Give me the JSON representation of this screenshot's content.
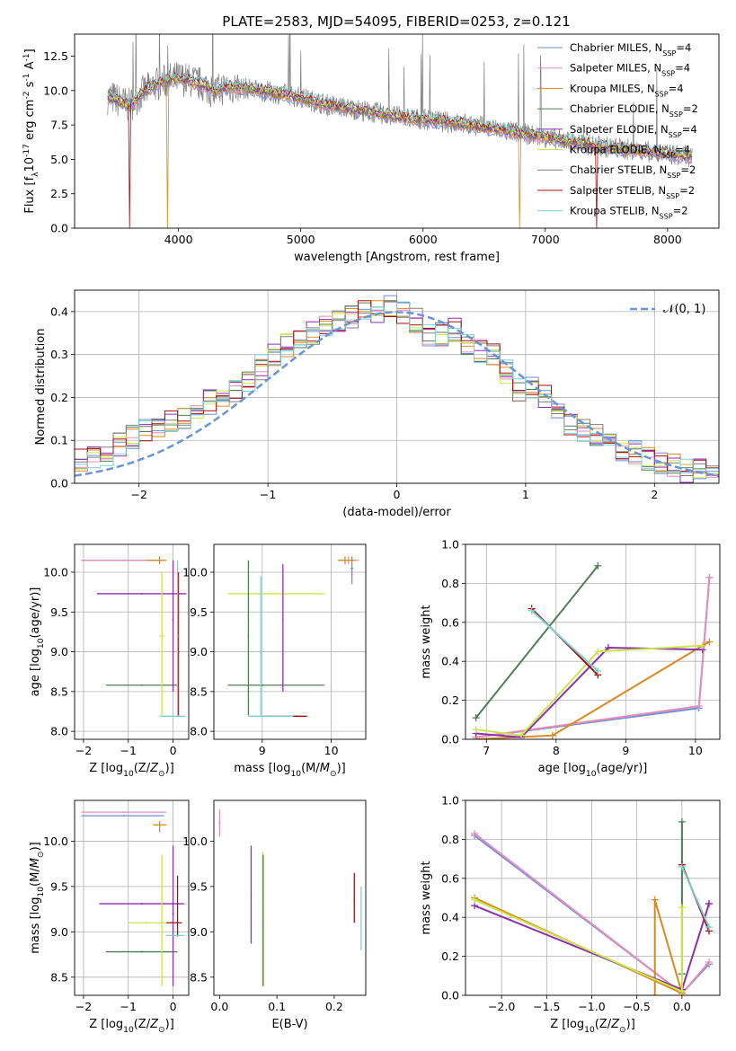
{
  "title": "PLATE=2583, MJD=54095, FIBERID=0253, z=0.121",
  "colors": {
    "Chabrier MILES": "#6f8fd8",
    "Salpeter MILES": "#e58fb8",
    "Kroupa MILES": "#d98a1f",
    "Chabrier ELODIE": "#4e7d55",
    "Salpeter ELODIE": "#8e2fb0",
    "Kroupa ELODIE": "#c9e64a",
    "Chabrier STELIB": "#7f7f7f",
    "Salpeter STELIB": "#a01010",
    "Kroupa STELIB": "#7ecfd2",
    "normal": "#6a93d8",
    "grid": "#b0b0b0"
  },
  "chart_data": [
    {
      "id": "spectrum",
      "type": "line",
      "title": "PLATE=2583, MJD=54095, FIBERID=0253, z=0.121",
      "xlabel": "wavelength [Angstrom, rest frame]",
      "ylabel": "Flux [f_λ10^-17 erg cm^-2 s^-1 A^-1]",
      "xlim": [
        3150,
        8420
      ],
      "ylim": [
        0,
        14.1
      ],
      "xticks": [
        4000,
        5000,
        6000,
        7000,
        8000
      ],
      "yticks": [
        0.0,
        2.5,
        5.0,
        7.5,
        10.0,
        12.5
      ],
      "grid": false,
      "legend_position": "top-right",
      "legend": [
        {
          "name": "Chabrier MILES",
          "label": "Chabrier MILES, N",
          "sub": "SSP",
          "tail": "=4"
        },
        {
          "name": "Salpeter MILES",
          "label": "Salpeter MILES, N",
          "sub": "SSP",
          "tail": "=4"
        },
        {
          "name": "Kroupa MILES",
          "label": "Kroupa MILES, N",
          "sub": "SSP",
          "tail": "=4"
        },
        {
          "name": "Chabrier ELODIE",
          "label": "Chabrier ELODIE, N",
          "sub": "SSP",
          "tail": "=2"
        },
        {
          "name": "Salpeter ELODIE",
          "label": "Salpeter ELODIE, N",
          "sub": "SSP",
          "tail": "=4"
        },
        {
          "name": "Kroupa ELODIE",
          "label": "Kroupa ELODIE, N",
          "sub": "SSP",
          "tail": "=4"
        },
        {
          "name": "Chabrier STELIB",
          "label": "Chabrier STELIB, N",
          "sub": "SSP",
          "tail": "=2"
        },
        {
          "name": "Salpeter STELIB",
          "label": "Salpeter STELIB, N",
          "sub": "SSP",
          "tail": "=2"
        },
        {
          "name": "Kroupa STELIB",
          "label": "Kroupa STELIB, N",
          "sub": "SSP",
          "tail": "=2"
        }
      ],
      "continuum": {
        "x": [
          3450,
          3600,
          3700,
          3800,
          3900,
          4000,
          4100,
          4200,
          4300,
          4400,
          4500,
          4600,
          4800,
          5000,
          5200,
          5400,
          5600,
          5800,
          6000,
          6200,
          6400,
          6600,
          6800,
          7000,
          7200,
          7400,
          7600,
          7800,
          8000,
          8200
        ],
        "y": [
          9.5,
          8.9,
          9.8,
          10.4,
          10.7,
          10.9,
          10.7,
          10.4,
          9.9,
          10.3,
          10.2,
          10.1,
          9.8,
          9.5,
          9.0,
          8.7,
          8.4,
          8.1,
          7.9,
          7.7,
          7.5,
          7.2,
          6.9,
          6.6,
          6.3,
          6.0,
          5.8,
          5.6,
          5.4,
          5.2
        ]
      },
      "model_dropouts": [
        {
          "model": "Salpeter STELIB",
          "x": [
            3600
          ],
          "y": [
            0.0
          ]
        },
        {
          "model": "Kroupa MILES",
          "x": [
            3910
          ],
          "y": [
            0.0
          ]
        },
        {
          "model": "Kroupa MILES",
          "x": [
            6790
          ],
          "y": [
            0.0
          ]
        },
        {
          "model": "Salpeter STELIB",
          "x": [
            7420
          ],
          "y": [
            0.0
          ]
        }
      ]
    },
    {
      "id": "residual-distribution",
      "type": "line",
      "xlabel": "(data-model)/error",
      "ylabel": "Normed distribution",
      "xlim": [
        -2.5,
        2.5
      ],
      "ylim": [
        0,
        0.45
      ],
      "xticks": [
        -2,
        -1,
        0,
        1,
        2
      ],
      "yticks": [
        0.0,
        0.1,
        0.2,
        0.3,
        0.4
      ],
      "grid": true,
      "legend_position": "top-right",
      "legend": [
        {
          "name": "normal",
          "label": "𝒩(0, 1)"
        }
      ],
      "bins": [
        -2.5,
        -2.4,
        -2.3,
        -2.2,
        -2.1,
        -2.0,
        -1.9,
        -1.8,
        -1.7,
        -1.6,
        -1.5,
        -1.4,
        -1.3,
        -1.2,
        -1.1,
        -1.0,
        -0.9,
        -0.8,
        -0.7,
        -0.6,
        -0.5,
        -0.4,
        -0.3,
        -0.2,
        -0.1,
        0.0,
        0.1,
        0.2,
        0.3,
        0.4,
        0.5,
        0.6,
        0.7,
        0.8,
        0.9,
        1.0,
        1.1,
        1.2,
        1.3,
        1.4,
        1.5,
        1.6,
        1.7,
        1.8,
        1.9,
        2.0,
        2.1,
        2.2,
        2.3,
        2.4,
        2.5
      ],
      "hist_reference": [
        0.05,
        0.06,
        0.07,
        0.09,
        0.11,
        0.12,
        0.13,
        0.14,
        0.15,
        0.17,
        0.19,
        0.2,
        0.22,
        0.24,
        0.27,
        0.3,
        0.32,
        0.33,
        0.35,
        0.36,
        0.38,
        0.39,
        0.4,
        0.4,
        0.41,
        0.4,
        0.38,
        0.35,
        0.35,
        0.36,
        0.33,
        0.31,
        0.3,
        0.26,
        0.22,
        0.22,
        0.2,
        0.17,
        0.14,
        0.12,
        0.11,
        0.09,
        0.07,
        0.07,
        0.06,
        0.05,
        0.04,
        0.03,
        0.03,
        0.03
      ],
      "normal_curve": {
        "mean": 0,
        "sigma": 1
      }
    },
    {
      "id": "age-vs-Z",
      "type": "scatter",
      "xlabel": "Z [log10(Z/Z⊙)]",
      "ylabel": "age  [log10(age/yr)]",
      "xlim": [
        -2.2,
        0.35
      ],
      "ylim": [
        7.9,
        10.35
      ],
      "xticks": [
        -2,
        -1,
        0
      ],
      "yticks": [
        8.0,
        8.5,
        9.0,
        9.5,
        10.0
      ],
      "grid": true,
      "errorbars": [
        {
          "model": "Chabrier MILES",
          "x": -1.1,
          "y": 10.15,
          "xlo": -2.05,
          "xhi": -0.25,
          "ylo": 10.14,
          "yhi": 10.16
        },
        {
          "model": "Salpeter MILES",
          "x": -1.1,
          "y": 10.15,
          "xlo": -2.05,
          "xhi": -0.2,
          "ylo": 10.14,
          "yhi": 10.16
        },
        {
          "model": "Kroupa MILES",
          "x": -0.3,
          "y": 10.15,
          "xlo": -0.6,
          "xhi": -0.15,
          "ylo": 10.1,
          "yhi": 10.2
        },
        {
          "model": "Chabrier ELODIE",
          "x": -0.7,
          "y": 8.58,
          "xlo": -1.5,
          "xhi": 0.1,
          "ylo": 8.57,
          "yhi": 8.59
        },
        {
          "model": "Salpeter ELODIE",
          "x": -0.7,
          "y": 9.73,
          "xlo": -1.7,
          "xhi": 0.3,
          "ylo": 9.72,
          "yhi": 9.74
        },
        {
          "model": "Kroupa ELODIE",
          "x": -0.25,
          "y": 9.2,
          "xlo": -0.3,
          "xhi": -0.2,
          "ylo": 8.2,
          "yhi": 10.0
        },
        {
          "model": "Salpeter ELODIE",
          "x": 0.0,
          "y": 9.4,
          "xlo": -0.02,
          "xhi": 0.02,
          "ylo": 8.5,
          "yhi": 10.15
        },
        {
          "model": "Salpeter STELIB",
          "x": 0.12,
          "y": 9.0,
          "xlo": 0.1,
          "xhi": 0.14,
          "ylo": 8.2,
          "yhi": 10.0
        },
        {
          "model": "Kroupa STELIB",
          "x": 0.1,
          "y": 8.19,
          "xlo": -0.3,
          "xhi": 0.28,
          "ylo": 8.18,
          "yhi": 8.2
        },
        {
          "model": "Kroupa STELIB",
          "x": 0.1,
          "y": 9.2,
          "xlo": 0.08,
          "xhi": 0.12,
          "ylo": 8.2,
          "yhi": 10.15
        }
      ]
    },
    {
      "id": "age-vs-mass",
      "type": "scatter",
      "xlabel": "mass [log10(M/M⊙)]",
      "ylabel": "",
      "xlim": [
        8.3,
        10.5
      ],
      "ylim": [
        7.9,
        10.35
      ],
      "xticks": [
        9,
        10
      ],
      "yticks": [
        8.0,
        8.5,
        9.0,
        9.5,
        10.0
      ],
      "grid": true,
      "errorbars": [
        {
          "model": "Chabrier ELODIE",
          "x": 9.0,
          "y": 8.58,
          "xlo": 8.5,
          "xhi": 9.9,
          "ylo": 8.57,
          "yhi": 8.59
        },
        {
          "model": "Kroupa ELODIE",
          "x": 9.1,
          "y": 9.73,
          "xlo": 8.5,
          "xhi": 9.9,
          "ylo": 9.72,
          "yhi": 9.74
        },
        {
          "model": "Chabrier ELODIE",
          "x": 8.8,
          "y": 9.2,
          "xlo": 8.79,
          "xhi": 8.81,
          "ylo": 8.2,
          "yhi": 10.15
        },
        {
          "model": "Salpeter ELODIE",
          "x": 9.3,
          "y": 9.4,
          "xlo": 9.29,
          "xhi": 9.31,
          "ylo": 8.5,
          "yhi": 10.1
        },
        {
          "model": "Salpeter STELIB",
          "x": 9.5,
          "y": 8.19,
          "xlo": 9.0,
          "xhi": 9.65,
          "ylo": 8.18,
          "yhi": 8.2
        },
        {
          "model": "Kroupa STELIB",
          "x": 9.0,
          "y": 8.19,
          "xlo": 8.8,
          "xhi": 9.45,
          "ylo": 8.18,
          "yhi": 8.2
        },
        {
          "model": "Kroupa STELIB",
          "x": 8.98,
          "y": 9.0,
          "xlo": 8.96,
          "xhi": 9.0,
          "ylo": 8.2,
          "yhi": 9.95
        },
        {
          "model": "Salpeter MILES",
          "x": 10.25,
          "y": 10.15,
          "xlo": 10.1,
          "xhi": 10.4,
          "ylo": 10.1,
          "yhi": 10.2
        },
        {
          "model": "Kroupa MILES",
          "x": 10.2,
          "y": 10.15,
          "xlo": 10.1,
          "xhi": 10.35,
          "ylo": 10.1,
          "yhi": 10.2
        },
        {
          "model": "Chabrier MILES",
          "x": 10.3,
          "y": 10.05,
          "xlo": 10.28,
          "xhi": 10.32,
          "ylo": 9.85,
          "yhi": 10.2
        }
      ]
    },
    {
      "id": "massweight-vs-age",
      "type": "line",
      "xlabel": "age  [log10(age/yr)]",
      "ylabel": "mass weight",
      "xlim": [
        6.7,
        10.35
      ],
      "ylim": [
        0,
        1.0
      ],
      "xticks": [
        7,
        8,
        9,
        10
      ],
      "yticks": [
        0.0,
        0.2,
        0.4,
        0.6,
        0.8,
        1.0
      ],
      "grid": true,
      "series": [
        {
          "name": "Chabrier MILES",
          "x": [
            6.85,
            10.05,
            10.2
          ],
          "y": [
            0.01,
            0.16,
            0.83
          ]
        },
        {
          "name": "Salpeter MILES",
          "x": [
            6.85,
            10.05,
            10.2
          ],
          "y": [
            0.01,
            0.17,
            0.83
          ]
        },
        {
          "name": "Kroupa MILES",
          "x": [
            6.85,
            7.95,
            10.1,
            10.2
          ],
          "y": [
            0.0,
            0.02,
            0.48,
            0.5
          ]
        },
        {
          "name": "Chabrier ELODIE",
          "x": [
            6.85,
            8.6
          ],
          "y": [
            0.11,
            0.89
          ]
        },
        {
          "name": "Salpeter ELODIE",
          "x": [
            6.85,
            7.5,
            8.75,
            10.1
          ],
          "y": [
            0.03,
            0.01,
            0.47,
            0.46
          ]
        },
        {
          "name": "Kroupa ELODIE",
          "x": [
            6.85,
            7.5,
            8.6,
            10.1
          ],
          "y": [
            0.05,
            0.02,
            0.45,
            0.48
          ]
        },
        {
          "name": "Salpeter STELIB",
          "x": [
            7.65,
            8.6
          ],
          "y": [
            0.67,
            0.33
          ]
        },
        {
          "name": "Kroupa STELIB",
          "x": [
            7.65,
            8.6
          ],
          "y": [
            0.66,
            0.35
          ]
        }
      ]
    },
    {
      "id": "mass-vs-Z",
      "type": "scatter",
      "xlabel": "Z [log10(Z/Z⊙)]",
      "ylabel": "mass [log10(M/M⊙)]",
      "xlim": [
        -2.2,
        0.35
      ],
      "ylim": [
        8.3,
        10.45
      ],
      "xticks": [
        -2,
        -1,
        0
      ],
      "yticks": [
        8.5,
        9.0,
        9.5,
        10.0
      ],
      "grid": true,
      "errorbars": [
        {
          "model": "Salpeter MILES",
          "x": -1.1,
          "y": 10.32,
          "xlo": -2.05,
          "xhi": -0.15,
          "ylo": 10.31,
          "yhi": 10.33
        },
        {
          "model": "Chabrier MILES",
          "x": -1.1,
          "y": 10.28,
          "xlo": -2.05,
          "xhi": -0.2,
          "ylo": 10.27,
          "yhi": 10.29
        },
        {
          "model": "Kroupa MILES",
          "x": -0.3,
          "y": 10.18,
          "xlo": -0.45,
          "xhi": -0.15,
          "ylo": 10.1,
          "yhi": 10.22
        },
        {
          "model": "Salpeter ELODIE",
          "x": -0.7,
          "y": 9.31,
          "xlo": -1.65,
          "xhi": 0.25,
          "ylo": 9.3,
          "yhi": 9.32
        },
        {
          "model": "Kroupa ELODIE",
          "x": -0.6,
          "y": 9.1,
          "xlo": -1.0,
          "xhi": -0.15,
          "ylo": 9.09,
          "yhi": 9.11
        },
        {
          "model": "Chabrier ELODIE",
          "x": -0.7,
          "y": 8.78,
          "xlo": -1.5,
          "xhi": 0.1,
          "ylo": 8.77,
          "yhi": 8.79
        },
        {
          "model": "Kroupa ELODIE",
          "x": -0.25,
          "y": 9.1,
          "xlo": -0.27,
          "xhi": -0.23,
          "ylo": 8.4,
          "yhi": 9.85
        },
        {
          "model": "Salpeter ELODIE",
          "x": 0.0,
          "y": 9.2,
          "xlo": -0.02,
          "xhi": 0.02,
          "ylo": 8.4,
          "yhi": 9.95
        },
        {
          "model": "Salpeter STELIB",
          "x": 0.1,
          "y": 9.1,
          "xlo": -0.15,
          "xhi": 0.2,
          "ylo": 8.95,
          "yhi": 9.62
        },
        {
          "model": "Kroupa STELIB",
          "x": 0.12,
          "y": 8.96,
          "xlo": -0.15,
          "xhi": 0.25,
          "ylo": 8.95,
          "yhi": 8.97
        }
      ]
    },
    {
      "id": "mass-vs-EBV",
      "type": "scatter",
      "xlabel": "E(B-V)",
      "ylabel": "",
      "xlim": [
        -0.01,
        0.255
      ],
      "ylim": [
        8.3,
        10.45
      ],
      "xticks": [
        0.0,
        0.1,
        0.2
      ],
      "yticks": [
        8.5,
        9.0,
        9.5,
        10.0
      ],
      "grid": false,
      "errorbars": [
        {
          "model": "Salpeter MILES",
          "x": 0.0,
          "y": 10.2,
          "xlo": -0.002,
          "xhi": 0.002,
          "ylo": 10.05,
          "yhi": 10.35
        },
        {
          "model": "Salpeter ELODIE",
          "x": 0.055,
          "y": 9.4,
          "xlo": 0.054,
          "xhi": 0.056,
          "ylo": 8.87,
          "yhi": 9.95
        },
        {
          "model": "Kroupa ELODIE",
          "x": 0.075,
          "y": 9.1,
          "xlo": 0.074,
          "xhi": 0.076,
          "ylo": 8.4,
          "yhi": 9.88
        },
        {
          "model": "Chabrier ELODIE",
          "x": 0.076,
          "y": 9.1,
          "xlo": 0.075,
          "xhi": 0.077,
          "ylo": 8.4,
          "yhi": 9.85
        },
        {
          "model": "Salpeter STELIB",
          "x": 0.235,
          "y": 9.35,
          "xlo": 0.234,
          "xhi": 0.236,
          "ylo": 9.1,
          "yhi": 9.65
        },
        {
          "model": "Kroupa STELIB",
          "x": 0.247,
          "y": 9.1,
          "xlo": 0.246,
          "xhi": 0.248,
          "ylo": 8.8,
          "yhi": 9.5
        }
      ]
    },
    {
      "id": "massweight-vs-Z",
      "type": "line",
      "xlabel": "Z [log10(Z/Z⊙)]",
      "ylabel": "mass weight",
      "xlim": [
        -2.4,
        0.42
      ],
      "ylim": [
        0,
        1.0
      ],
      "xticks": [
        -2.0,
        -1.5,
        -1.0,
        -0.5,
        0.0
      ],
      "yticks": [
        0.0,
        0.2,
        0.4,
        0.6,
        0.8,
        1.0
      ],
      "grid": true,
      "series": [
        {
          "name": "Chabrier MILES",
          "x": [
            -2.3,
            0.0,
            0.3
          ],
          "y": [
            0.82,
            0.01,
            0.16
          ]
        },
        {
          "name": "Salpeter MILES",
          "x": [
            -2.3,
            0.0,
            0.3
          ],
          "y": [
            0.83,
            0.01,
            0.17
          ]
        },
        {
          "name": "Kroupa MILES",
          "x": [
            -2.3,
            0.0,
            -0.3,
            -0.3
          ],
          "y": [
            0.5,
            0.01,
            0.49,
            0.0
          ]
        },
        {
          "name": "Chabrier ELODIE",
          "x": [
            0.0,
            0.0
          ],
          "y": [
            0.11,
            0.89
          ]
        },
        {
          "name": "Salpeter ELODIE",
          "x": [
            -2.3,
            0.0,
            0.3,
            0.3
          ],
          "y": [
            0.46,
            0.03,
            0.47,
            0.47
          ]
        },
        {
          "name": "Kroupa ELODIE",
          "x": [
            -2.3,
            0.0,
            0.0
          ],
          "y": [
            0.49,
            0.02,
            0.45
          ]
        },
        {
          "name": "Salpeter STELIB",
          "x": [
            0.0,
            0.3
          ],
          "y": [
            0.67,
            0.33
          ]
        },
        {
          "name": "Kroupa STELIB",
          "x": [
            0.0,
            0.3
          ],
          "y": [
            0.66,
            0.35
          ]
        }
      ]
    }
  ]
}
